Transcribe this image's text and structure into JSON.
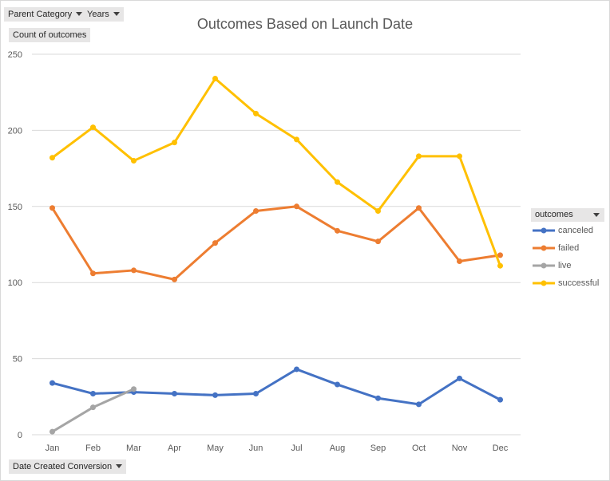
{
  "filters": {
    "parent_category": "Parent Category",
    "years": "Years",
    "count_label": "Count of outcomes",
    "date_created": "Date Created Conversion"
  },
  "legend": {
    "header": "outcomes",
    "items": [
      {
        "label": "canceled",
        "color": "#4472c4"
      },
      {
        "label": "failed",
        "color": "#ed7d31"
      },
      {
        "label": "live",
        "color": "#a5a5a5"
      },
      {
        "label": "successful",
        "color": "#ffc000"
      }
    ]
  },
  "chart_data": {
    "type": "line",
    "title": "Outcomes Based on Launch Date",
    "categories": [
      "Jan",
      "Feb",
      "Mar",
      "Apr",
      "May",
      "Jun",
      "Jul",
      "Aug",
      "Sep",
      "Oct",
      "Nov",
      "Dec"
    ],
    "ylim": [
      0,
      250
    ],
    "yticks": [
      0,
      50,
      100,
      150,
      200,
      250
    ],
    "grid": true,
    "legend_position": "right",
    "series": [
      {
        "name": "canceled",
        "color": "#4472c4",
        "values": [
          34,
          27,
          28,
          27,
          26,
          27,
          43,
          33,
          24,
          20,
          37,
          23
        ]
      },
      {
        "name": "failed",
        "color": "#ed7d31",
        "values": [
          149,
          106,
          108,
          102,
          126,
          147,
          150,
          134,
          127,
          149,
          114,
          118
        ]
      },
      {
        "name": "live",
        "color": "#a5a5a5",
        "values": [
          2,
          18,
          30,
          null,
          null,
          null,
          null,
          null,
          null,
          null,
          null,
          null
        ]
      },
      {
        "name": "successful",
        "color": "#ffc000",
        "values": [
          182,
          202,
          180,
          192,
          234,
          211,
          194,
          166,
          147,
          183,
          183,
          111
        ]
      }
    ]
  }
}
